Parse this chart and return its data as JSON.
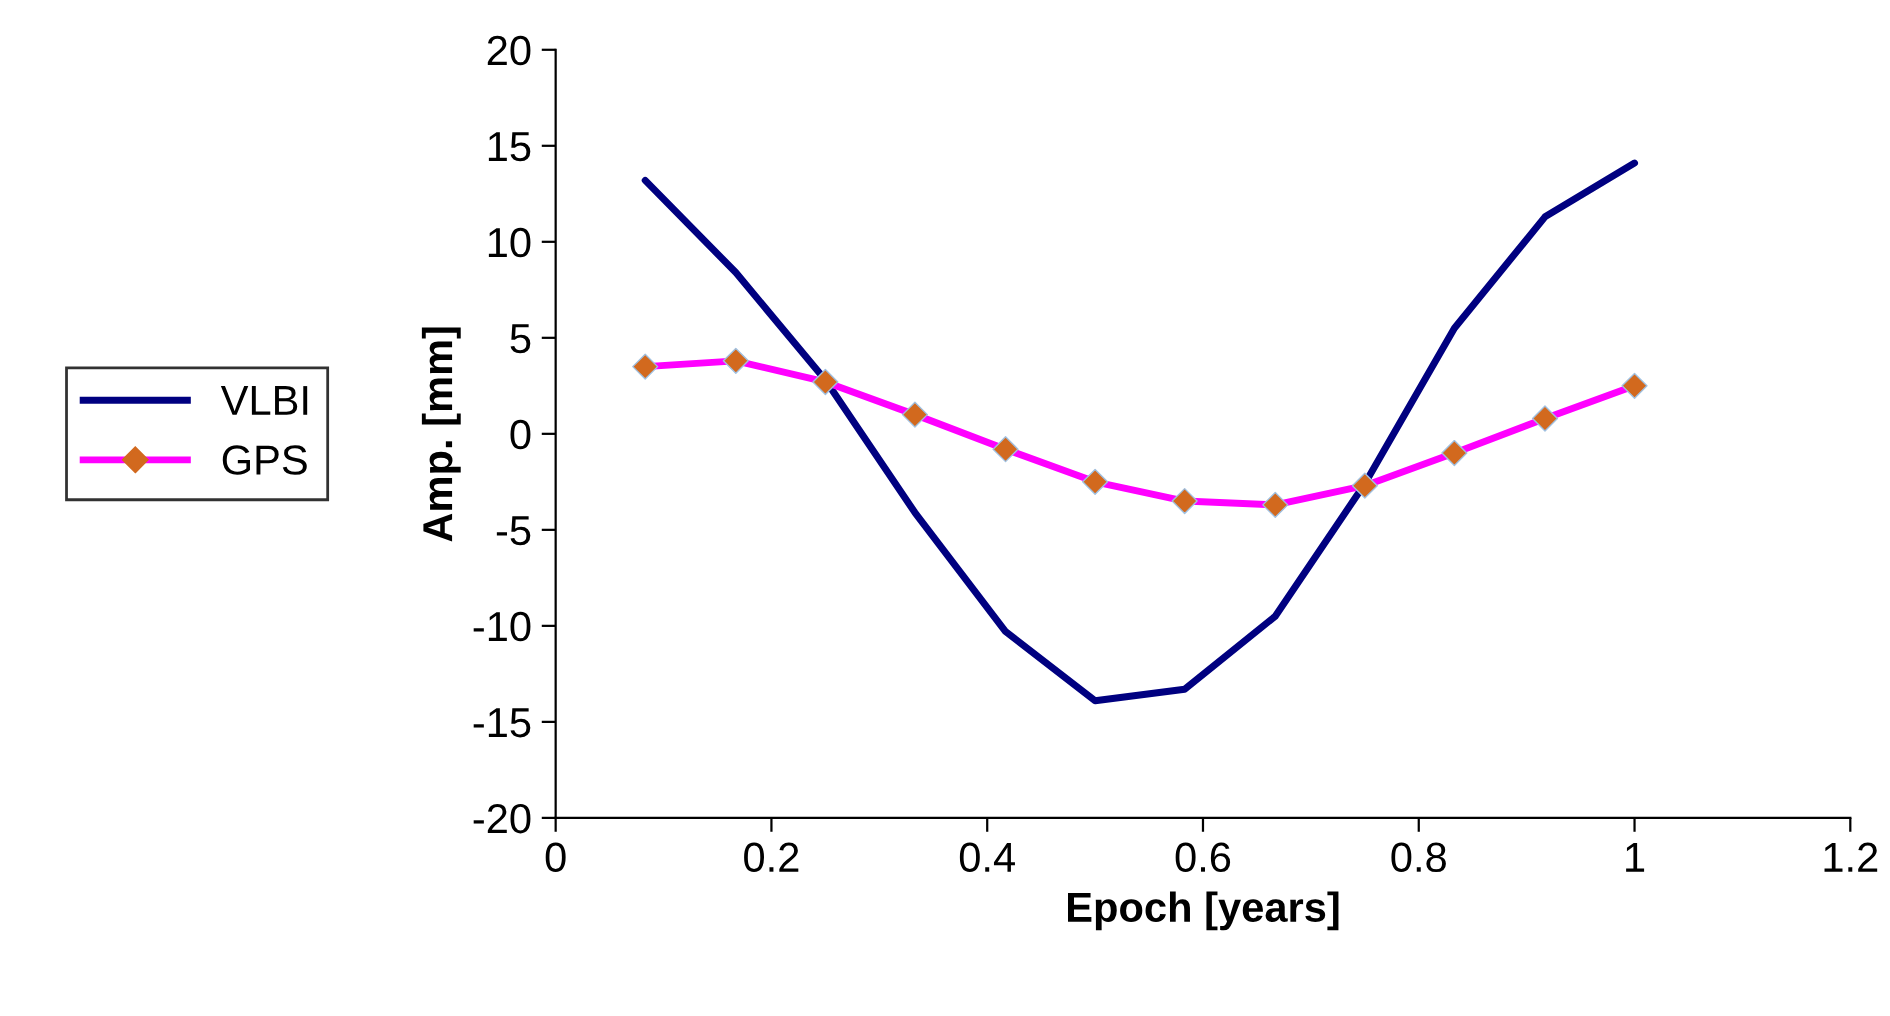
{
  "chart_data": {
    "type": "line",
    "xlabel": "Epoch [years]",
    "ylabel": "Amp. [mm]",
    "x": [
      0.083,
      0.167,
      0.25,
      0.333,
      0.417,
      0.5,
      0.583,
      0.667,
      0.75,
      0.833,
      0.917,
      1.0
    ],
    "series": [
      {
        "name": "VLBI",
        "color": "#000080",
        "marker": "none",
        "values": [
          13.2,
          8.4,
          2.8,
          -4.1,
          -10.3,
          -13.9,
          -13.3,
          -9.5,
          -2.6,
          5.5,
          11.3,
          14.1
        ]
      },
      {
        "name": "GPS",
        "color": "#ff00ff",
        "marker": "diamond",
        "colors": [
          "#d2691e",
          "#d2691e",
          "#d2691e",
          "#d2691e",
          "#d2691e",
          "#d2691e",
          "#d2691e",
          "#d2691e",
          "#d2691e",
          "#d2691e",
          "#d2691e",
          "#d2691e"
        ],
        "values": [
          3.5,
          3.8,
          2.7,
          1.0,
          -0.8,
          -2.5,
          -3.5,
          -3.7,
          -2.7,
          -1.0,
          0.8,
          2.5
        ]
      }
    ],
    "xlim": [
      0,
      1.2
    ],
    "xticks": [
      0,
      0.2,
      0.4,
      0.6,
      0.8,
      1,
      1.2
    ],
    "ylim": [
      -20,
      20
    ],
    "yticks": [
      -20,
      -15,
      -10,
      -5,
      0,
      5,
      10,
      15,
      20
    ],
    "grid": false,
    "legend": "left"
  }
}
